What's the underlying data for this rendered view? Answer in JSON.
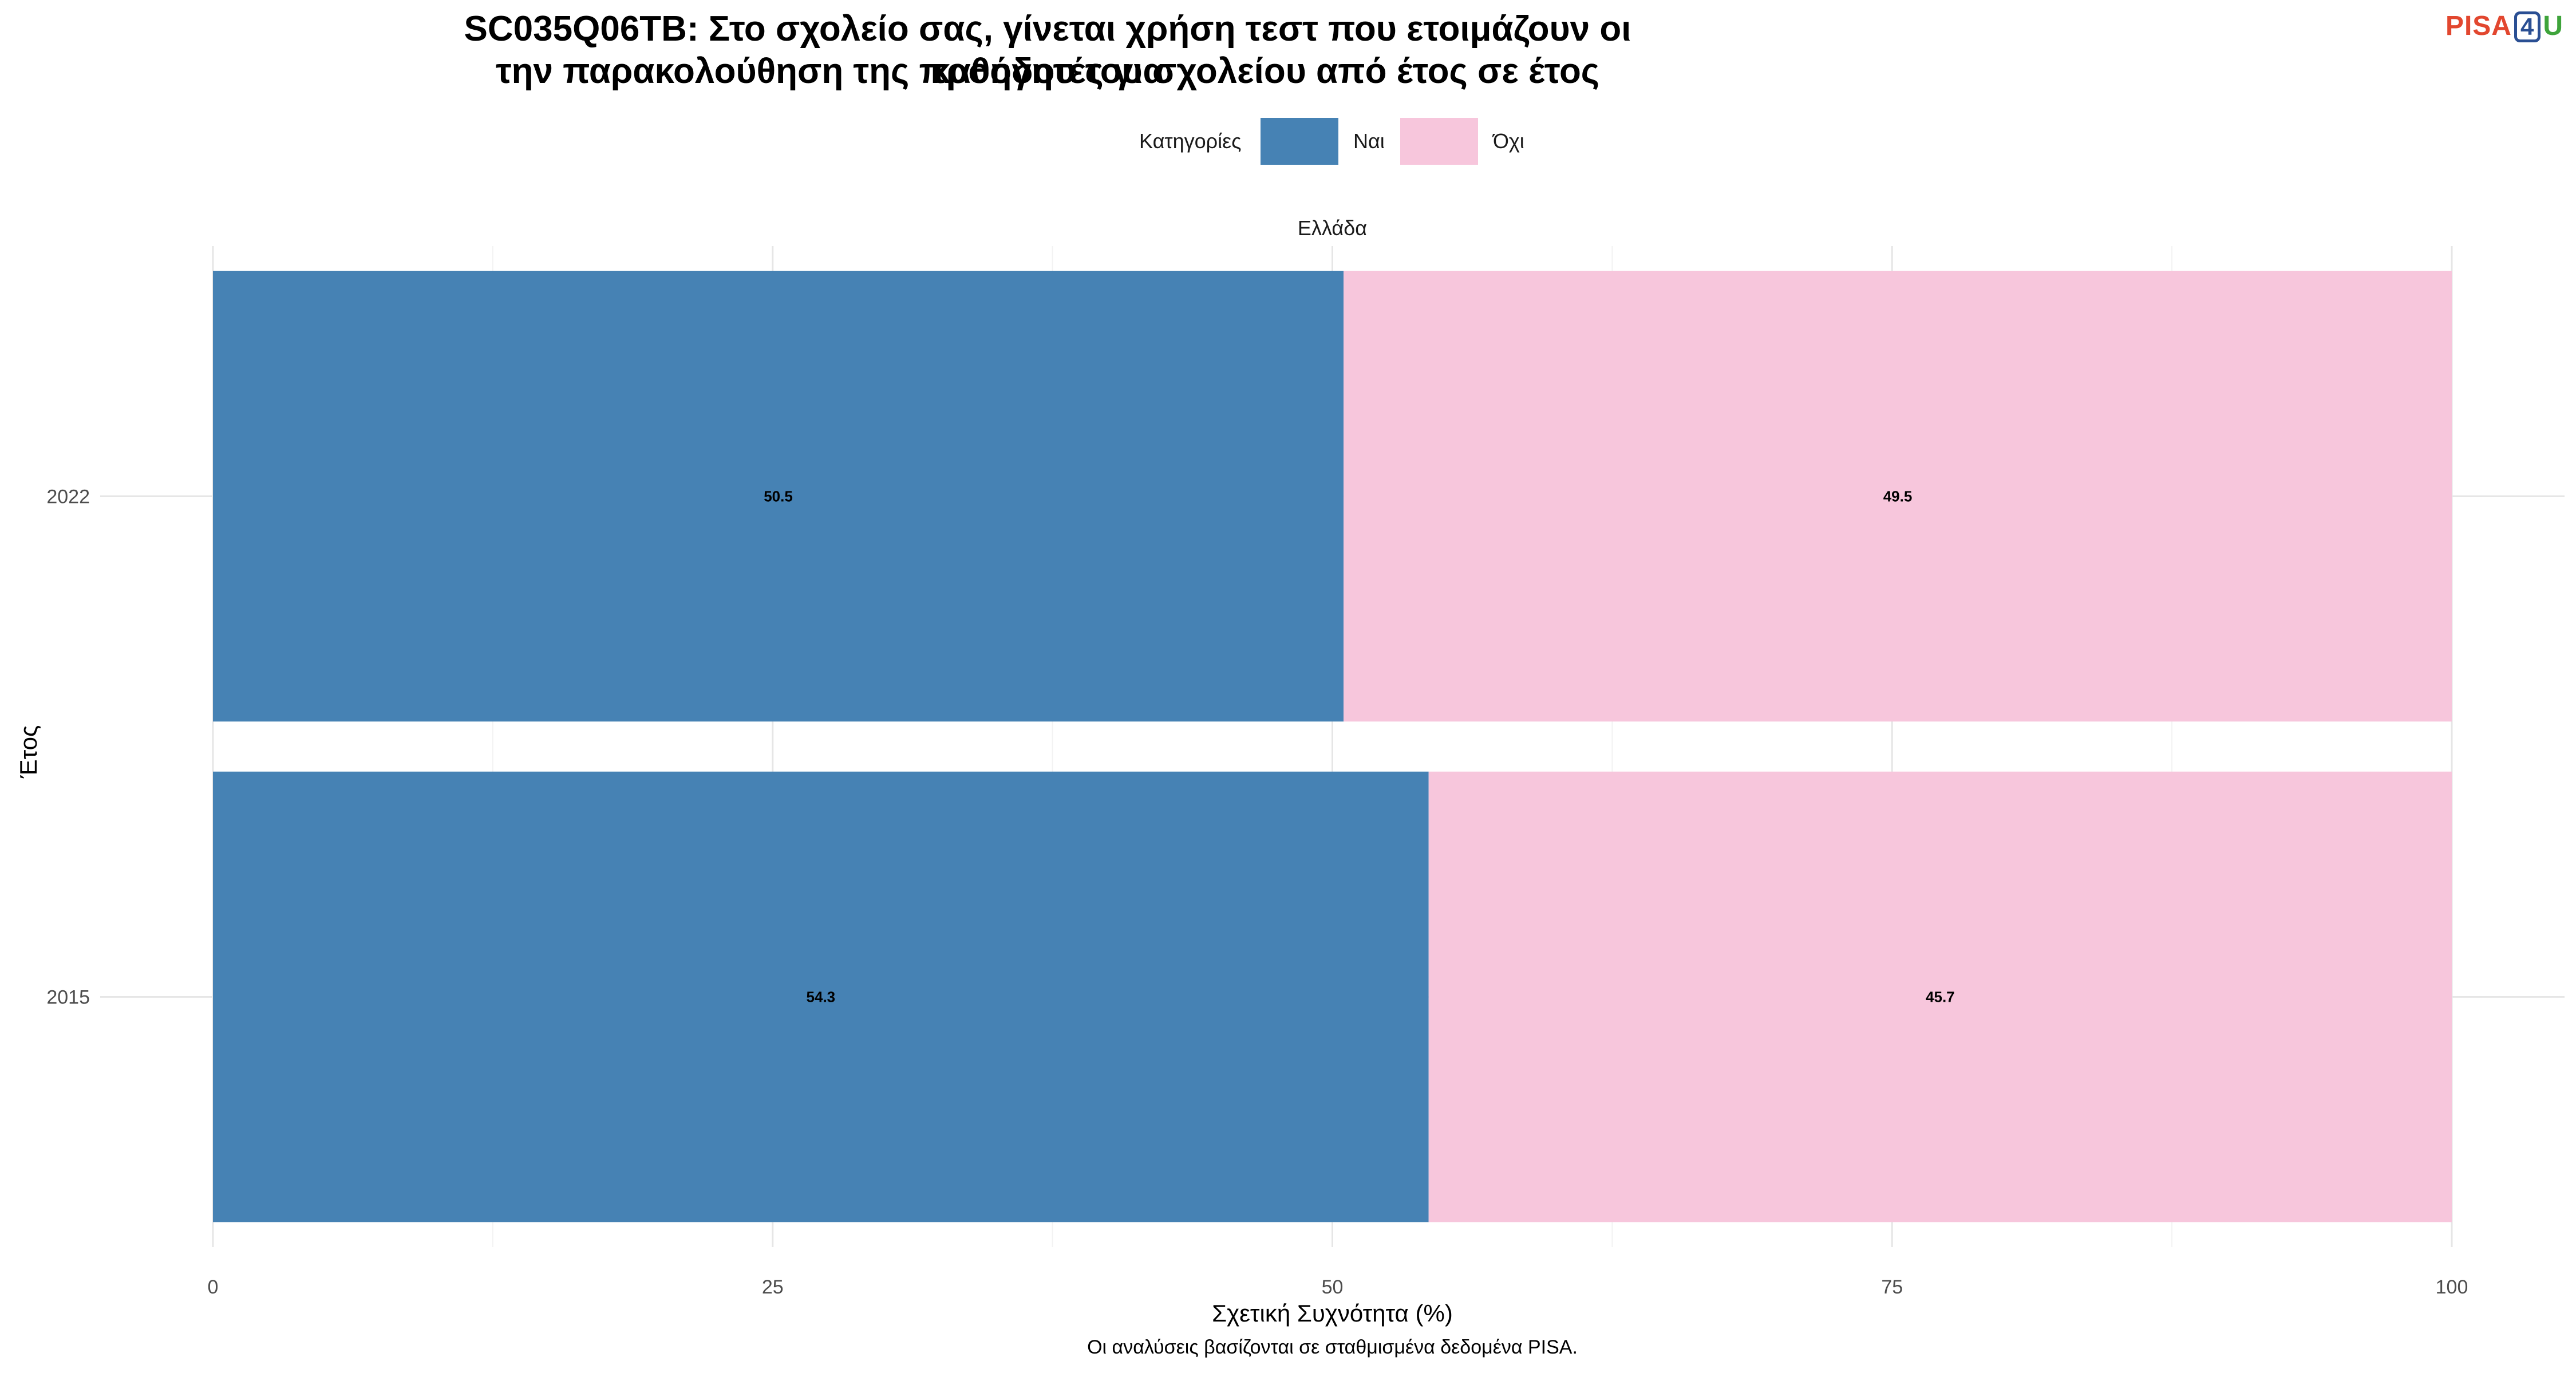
{
  "title_lines": [
    "SC035Q06TB: Στο σχολείο σας, γίνεται χρήση τεστ που ετοιμάζουν οι καθηγητές για",
    "την παρακολούθηση της προόδου του σχολείου από έτος σε έτος"
  ],
  "logo": {
    "pisa": "PISA",
    "four": "4",
    "u": "U"
  },
  "legend": {
    "title": "Κατηγορίες",
    "placement": "top-center",
    "items": [
      {
        "label": "Ναι",
        "color": "#4682b4"
      },
      {
        "label": "Όχι",
        "color": "#f7c6dc"
      }
    ]
  },
  "caption": "Οι αναλύσεις βασίζονται σε σταθμισμένα δεδομένα PISA.",
  "chart_data": {
    "type": "bar",
    "orientation": "horizontal",
    "stacked": true,
    "facet": "Ελλάδα",
    "title": "SC035Q06TB: Στο σχολείο σας, γίνεται χρήση τεστ που ετοιμάζουν οι καθηγητές για την παρακολούθηση της προόδου του σχολείου από έτος σε έτος",
    "xlabel": "Σχετική Συχνότητα (%)",
    "ylabel": "Έτος",
    "xlim": [
      0,
      100
    ],
    "x_ticks": [
      "0",
      "25",
      "50",
      "75",
      "100"
    ],
    "categories": [
      "2022",
      "2015"
    ],
    "series": [
      {
        "name": "Ναι",
        "color": "#4682b4",
        "values": [
          50.5,
          54.3
        ],
        "labels": [
          "50.5",
          "54.3"
        ]
      },
      {
        "name": "Όχι",
        "color": "#f7c6dc",
        "values": [
          49.5,
          45.7
        ],
        "labels": [
          "49.5",
          "45.7"
        ]
      }
    ],
    "grid": true
  }
}
